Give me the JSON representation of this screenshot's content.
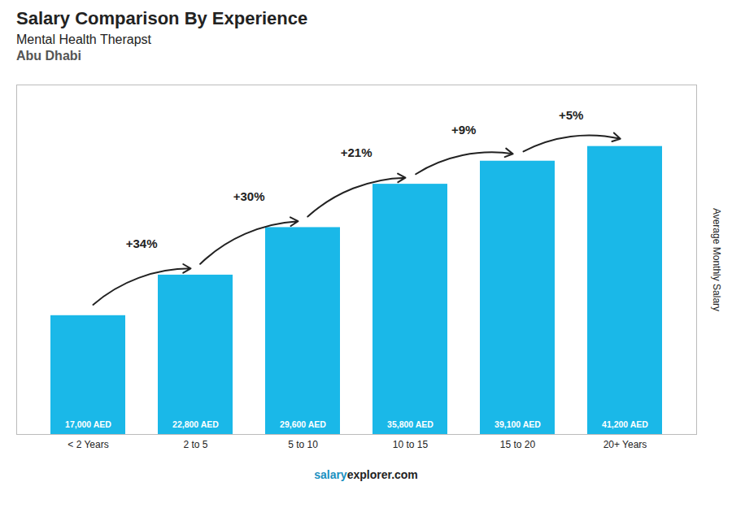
{
  "chart_data": {
    "type": "bar",
    "title": "Salary Comparison By Experience",
    "subtitle": [
      "Mental Health Therapst",
      "Abu Dhabi"
    ],
    "ylabel": "Average Monthly Salary",
    "categories": [
      "< 2 Years",
      "2 to 5",
      "5 to 10",
      "10 to 15",
      "15 to 20",
      "20+ Years"
    ],
    "values": [
      17000,
      22800,
      29600,
      35800,
      39100,
      41200
    ],
    "value_labels": [
      "17,000 AED",
      "22,800 AED",
      "29,600 AED",
      "35,800 AED",
      "39,100 AED",
      "41,200 AED"
    ],
    "data_labels": true,
    "color": "#1ab8e8",
    "ylim": [
      0,
      50000
    ],
    "tick_labels": "x",
    "grid": false,
    "annotations": [
      {
        "text": "+34%",
        "from": "< 2 Years",
        "to": "2 to 5"
      },
      {
        "text": "+30%",
        "from": "2 to 5",
        "to": "5 to 10"
      },
      {
        "text": "+21%",
        "from": "5 to 10",
        "to": "10 to 15"
      },
      {
        "text": "+9%",
        "from": "10 to 15",
        "to": "15 to 20"
      },
      {
        "text": "+5%",
        "from": "15 to 20",
        "to": "20+ Years"
      }
    ],
    "caption": [
      "salary",
      "explorer.com"
    ]
  }
}
